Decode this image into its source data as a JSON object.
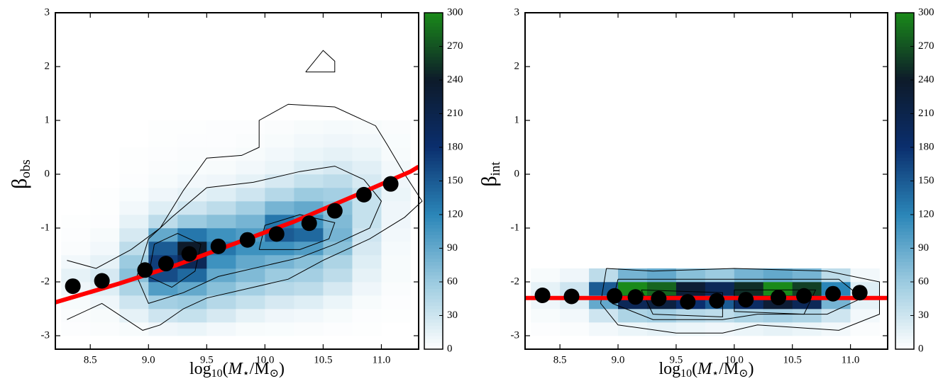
{
  "chart_data": [
    {
      "type": "histogram2d",
      "x_label": [
        "log",
        "10",
        "(",
        "M",
        "⋆",
        "/M",
        "⊙",
        ")"
      ],
      "y_label": [
        "β",
        "obs"
      ],
      "xlim": [
        8.2,
        11.32
      ],
      "ylim": [
        -3.25,
        3
      ],
      "xticks": [
        8.5,
        {
          "value": 9.0,
          "label": "9.0"
        },
        9.5,
        {
          "value": 10.0,
          "label": "10.0"
        },
        10.5,
        {
          "value": 11.0,
          "label": "11.0"
        }
      ],
      "yticks": [
        -3,
        -2,
        -1,
        0,
        1,
        2,
        3
      ],
      "clim": [
        0,
        300
      ],
      "cticks": [
        0,
        30,
        60,
        90,
        120,
        150,
        180,
        210,
        240,
        270,
        300
      ],
      "colormap": [
        "#ffffff",
        "#9ccbe0",
        "#2b86b8",
        "#0b2f6e",
        "#0d1a2a",
        "#1a8a1a"
      ],
      "xbins": [
        8.25,
        8.5,
        8.75,
        9.0,
        9.25,
        9.5,
        9.75,
        10.0,
        10.25,
        10.5,
        10.75,
        11.0,
        11.25
      ],
      "ybins": [
        -3,
        -2.75,
        -2.5,
        -2.25,
        -2,
        -1.75,
        -1.5,
        -1.25,
        -1,
        -0.75,
        -0.5,
        -0.25,
        0,
        0.25,
        0.5,
        0.75,
        1
      ],
      "counts": [
        [
          2,
          3,
          5,
          10,
          12,
          8,
          5,
          4,
          3,
          2,
          1,
          0
        ],
        [
          3,
          5,
          15,
          30,
          35,
          25,
          15,
          10,
          8,
          5,
          2,
          1
        ],
        [
          5,
          10,
          30,
          55,
          60,
          45,
          35,
          25,
          20,
          12,
          5,
          2
        ],
        [
          10,
          20,
          50,
          100,
          90,
          70,
          55,
          45,
          40,
          25,
          10,
          3
        ],
        [
          15,
          25,
          70,
          160,
          140,
          90,
          75,
          60,
          55,
          40,
          15,
          5
        ],
        [
          8,
          15,
          60,
          170,
          200,
          110,
          90,
          80,
          70,
          50,
          20,
          5
        ],
        [
          3,
          8,
          40,
          150,
          240,
          130,
          110,
          110,
          100,
          70,
          25,
          6
        ],
        [
          2,
          5,
          25,
          90,
          130,
          110,
          100,
          150,
          140,
          80,
          30,
          8
        ],
        [
          1,
          2,
          15,
          40,
          60,
          70,
          80,
          130,
          110,
          75,
          35,
          10
        ],
        [
          0,
          1,
          8,
          20,
          30,
          40,
          55,
          80,
          90,
          70,
          35,
          10
        ],
        [
          0,
          1,
          4,
          10,
          15,
          20,
          30,
          45,
          60,
          55,
          35,
          12
        ],
        [
          0,
          0,
          2,
          5,
          8,
          10,
          15,
          25,
          35,
          40,
          25,
          10
        ],
        [
          0,
          0,
          1,
          3,
          4,
          5,
          8,
          12,
          20,
          25,
          18,
          8
        ],
        [
          0,
          0,
          1,
          2,
          3,
          3,
          5,
          8,
          12,
          15,
          12,
          5
        ],
        [
          0,
          0,
          0,
          1,
          2,
          2,
          3,
          5,
          8,
          10,
          8,
          4
        ],
        [
          0,
          0,
          0,
          1,
          1,
          2,
          2,
          3,
          5,
          6,
          5,
          3
        ]
      ],
      "contours": [
        {
          "x": [
            8.3,
            8.55,
            8.85,
            9.1,
            9.3,
            9.5,
            9.8,
            9.95,
            9.95,
            10.2,
            10.6,
            10.95,
            11.05,
            11.2,
            11.35,
            11.2,
            10.9,
            10.5,
            10.2,
            9.9,
            9.5,
            9.3,
            9.1,
            8.95,
            8.6,
            8.3
          ],
          "y": [
            -1.6,
            -1.75,
            -1.4,
            -1.0,
            -0.3,
            0.3,
            0.35,
            0.5,
            1.0,
            1.3,
            1.25,
            0.9,
            0.55,
            0.0,
            -0.5,
            -0.8,
            -1.2,
            -1.6,
            -1.95,
            -2.1,
            -2.3,
            -2.5,
            -2.8,
            -2.9,
            -2.4,
            -2.7
          ]
        },
        {
          "x": [
            8.9,
            9.0,
            9.2,
            9.5,
            9.9,
            10.3,
            10.6,
            10.85,
            11.0,
            10.9,
            10.6,
            10.3,
            10.0,
            9.6,
            9.3,
            9.0,
            8.9
          ],
          "y": [
            -1.9,
            -1.2,
            -0.8,
            -0.25,
            -0.15,
            0.05,
            0.15,
            -0.1,
            -0.5,
            -1.0,
            -1.3,
            -1.55,
            -1.7,
            -1.9,
            -2.2,
            -2.4,
            -1.9
          ]
        },
        {
          "x": [
            9.0,
            9.05,
            9.25,
            9.45,
            9.4,
            9.2,
            9.0
          ],
          "y": [
            -1.9,
            -1.3,
            -1.1,
            -1.3,
            -1.8,
            -2.1,
            -1.9
          ]
        },
        {
          "x": [
            9.95,
            10.0,
            10.3,
            10.6,
            10.55,
            10.3,
            9.95
          ],
          "y": [
            -1.4,
            -0.95,
            -0.75,
            -0.9,
            -1.2,
            -1.4,
            -1.4
          ]
        },
        {
          "x": [
            10.35,
            10.5,
            10.6,
            10.6,
            10.35
          ],
          "y": [
            1.9,
            2.3,
            2.1,
            1.9,
            1.9
          ]
        }
      ],
      "points": {
        "color": "#000000",
        "x": [
          8.35,
          8.6,
          8.97,
          9.15,
          9.35,
          9.6,
          9.85,
          10.1,
          10.38,
          10.6,
          10.85,
          11.08
        ],
        "y": [
          -2.08,
          -1.98,
          -1.78,
          -1.66,
          -1.48,
          -1.34,
          -1.22,
          -1.11,
          -0.91,
          -0.68,
          -0.38,
          -0.18
        ]
      },
      "fit": {
        "color": "#ff0000",
        "x": [
          8.2,
          8.75,
          9.25,
          9.75,
          10.25,
          10.75,
          11.25,
          11.32
        ],
        "y": [
          -2.38,
          -2.03,
          -1.68,
          -1.28,
          -0.88,
          -0.42,
          0.05,
          0.14
        ]
      }
    },
    {
      "type": "histogram2d",
      "x_label": [
        "log",
        "10",
        "(",
        "M",
        "⋆",
        "/M",
        "⊙",
        ")"
      ],
      "y_label": [
        "β",
        "int"
      ],
      "xlim": [
        8.2,
        11.32
      ],
      "ylim": [
        -3.25,
        3
      ],
      "xticks": [
        8.5,
        {
          "value": 9.0,
          "label": "9.0"
        },
        9.5,
        {
          "value": 10.0,
          "label": "10.0"
        },
        10.5,
        {
          "value": 11.0,
          "label": "11.0"
        }
      ],
      "yticks": [
        -3,
        -2,
        -1,
        0,
        1,
        2,
        3
      ],
      "clim": [
        0,
        300
      ],
      "cticks": [
        0,
        30,
        60,
        90,
        120,
        150,
        180,
        210,
        240,
        270,
        300
      ],
      "colormap": [
        "#ffffff",
        "#9ccbe0",
        "#2b86b8",
        "#0b2f6e",
        "#0d1a2a",
        "#1a8a1a"
      ],
      "xbins": [
        8.25,
        8.5,
        8.75,
        9.0,
        9.25,
        9.5,
        9.75,
        10.0,
        10.25,
        10.5,
        10.75,
        11.0,
        11.25
      ],
      "ybins": [
        -3,
        -2.75,
        -2.5,
        -2.25,
        -2,
        -1.75
      ],
      "counts": [
        [
          2,
          3,
          8,
          12,
          15,
          12,
          10,
          12,
          15,
          12,
          8,
          3
        ],
        [
          5,
          8,
          30,
          50,
          55,
          45,
          40,
          50,
          55,
          50,
          30,
          8
        ],
        [
          10,
          20,
          90,
          200,
          220,
          180,
          150,
          190,
          230,
          200,
          80,
          15
        ],
        [
          15,
          30,
          150,
          300,
          280,
          230,
          200,
          250,
          300,
          260,
          120,
          20
        ],
        [
          5,
          10,
          40,
          80,
          90,
          70,
          60,
          80,
          90,
          80,
          40,
          8
        ]
      ],
      "contours": [
        {
          "x": [
            8.9,
            9.3,
            10.0,
            10.8,
            11.25,
            11.25,
            10.9,
            10.2,
            9.9,
            9.5,
            9.0,
            8.85,
            8.9
          ],
          "y": [
            -1.75,
            -1.8,
            -1.75,
            -1.8,
            -2.0,
            -2.6,
            -2.9,
            -2.8,
            -2.95,
            -2.95,
            -2.8,
            -2.4,
            -1.75
          ]
        },
        {
          "x": [
            9.0,
            9.6,
            10.0,
            10.9,
            11.1,
            10.8,
            10.2,
            9.9,
            9.3,
            8.95,
            9.0
          ],
          "y": [
            -1.95,
            -1.95,
            -1.95,
            -1.95,
            -2.3,
            -2.6,
            -2.6,
            -2.7,
            -2.7,
            -2.4,
            -1.95
          ]
        },
        {
          "x": [
            9.2,
            9.9,
            9.9,
            9.3,
            9.2
          ],
          "y": [
            -2.15,
            -2.2,
            -2.65,
            -2.6,
            -2.15
          ]
        },
        {
          "x": [
            10.0,
            10.7,
            10.6,
            10.0,
            10.0
          ],
          "y": [
            -2.15,
            -2.15,
            -2.6,
            -2.55,
            -2.15
          ]
        }
      ],
      "points": {
        "color": "#000000",
        "x": [
          8.35,
          8.6,
          8.97,
          9.15,
          9.35,
          9.6,
          9.85,
          10.1,
          10.38,
          10.6,
          10.85,
          11.08
        ],
        "y": [
          -2.25,
          -2.27,
          -2.26,
          -2.28,
          -2.31,
          -2.37,
          -2.35,
          -2.33,
          -2.29,
          -2.26,
          -2.22,
          -2.2
        ]
      },
      "fit": {
        "color": "#ff0000",
        "x": [
          8.2,
          11.32
        ],
        "y": [
          -2.3,
          -2.3
        ]
      }
    }
  ]
}
